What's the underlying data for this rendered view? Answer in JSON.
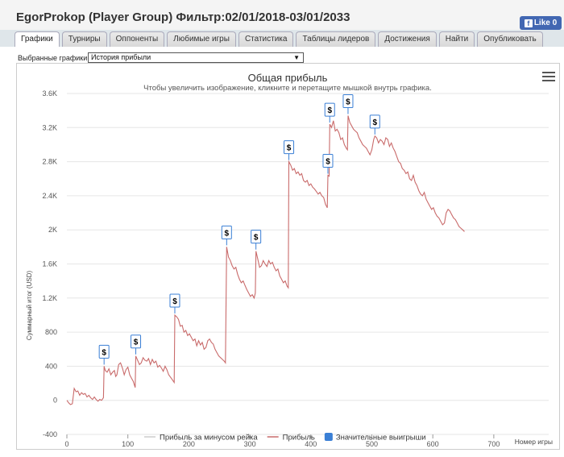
{
  "header": {
    "title": "EgorProkop (Player Group) Фильтр:02/01/2018-03/01/2033",
    "fb_like_label": "Like 0"
  },
  "tabs": [
    {
      "label": "Графики",
      "active": true
    },
    {
      "label": "Турниры"
    },
    {
      "label": "Оппоненты"
    },
    {
      "label": "Любимые игры"
    },
    {
      "label": "Статистика"
    },
    {
      "label": "Таблицы лидеров"
    },
    {
      "label": "Достижения"
    },
    {
      "label": "Найти"
    },
    {
      "label": "Опубликовать"
    }
  ],
  "selector": {
    "label": "Выбранные графики:",
    "value": "История прибыли"
  },
  "chart_data": {
    "type": "line",
    "title": "Общая прибыль",
    "subtitle": "Чтобы увеличить изображение, кликните и перетащите мышкой внутрь графика.",
    "xlabel": "Номер игры",
    "ylabel": "Суммарный итог (USD)",
    "xlim": [
      0,
      790
    ],
    "ylim": [
      -400,
      3600
    ],
    "xticks": [
      0,
      100,
      200,
      300,
      400,
      500,
      600,
      700
    ],
    "yticks": [
      -400,
      0,
      400,
      800,
      1200,
      1600,
      2000,
      2400,
      2800,
      3200,
      3600
    ],
    "ytick_labels": [
      "-400",
      "0",
      "400",
      "800",
      "1.2K",
      "1.6K",
      "2K",
      "2.4K",
      "2.8K",
      "3.2K",
      "3.6K"
    ],
    "grid": true,
    "legend_position": "bottom",
    "legend": [
      {
        "name": "Прибыль за минусом рейка",
        "color": "#cccccc",
        "type": "line"
      },
      {
        "name": "Прибыль",
        "color": "#c96b6b",
        "type": "line"
      },
      {
        "name": "Значительные выигрыши",
        "color": "#3a7fd5",
        "type": "box"
      }
    ],
    "series": [
      {
        "name": "Прибыль",
        "color": "#c96b6b",
        "points": [
          [
            0,
            0
          ],
          [
            3,
            -30
          ],
          [
            6,
            -50
          ],
          [
            9,
            -40
          ],
          [
            12,
            140
          ],
          [
            15,
            100
          ],
          [
            18,
            110
          ],
          [
            21,
            60
          ],
          [
            24,
            90
          ],
          [
            27,
            70
          ],
          [
            30,
            80
          ],
          [
            33,
            40
          ],
          [
            36,
            60
          ],
          [
            39,
            30
          ],
          [
            42,
            10
          ],
          [
            45,
            40
          ],
          [
            48,
            10
          ],
          [
            51,
            -10
          ],
          [
            54,
            10
          ],
          [
            57,
            0
          ],
          [
            60,
            30
          ],
          [
            61,
            400
          ],
          [
            63,
            350
          ],
          [
            66,
            330
          ],
          [
            69,
            370
          ],
          [
            72,
            300
          ],
          [
            75,
            330
          ],
          [
            78,
            350
          ],
          [
            80,
            280
          ],
          [
            82,
            300
          ],
          [
            85,
            420
          ],
          [
            88,
            440
          ],
          [
            91,
            380
          ],
          [
            94,
            300
          ],
          [
            97,
            360
          ],
          [
            100,
            390
          ],
          [
            103,
            300
          ],
          [
            106,
            260
          ],
          [
            109,
            220
          ],
          [
            112,
            150
          ],
          [
            113,
            520
          ],
          [
            116,
            470
          ],
          [
            119,
            420
          ],
          [
            122,
            440
          ],
          [
            125,
            500
          ],
          [
            128,
            470
          ],
          [
            131,
            460
          ],
          [
            134,
            490
          ],
          [
            137,
            420
          ],
          [
            140,
            480
          ],
          [
            143,
            440
          ],
          [
            146,
            460
          ],
          [
            149,
            390
          ],
          [
            152,
            410
          ],
          [
            155,
            380
          ],
          [
            158,
            340
          ],
          [
            161,
            400
          ],
          [
            164,
            360
          ],
          [
            167,
            300
          ],
          [
            170,
            270
          ],
          [
            173,
            240
          ],
          [
            176,
            210
          ],
          [
            177,
            1000
          ],
          [
            180,
            980
          ],
          [
            183,
            950
          ],
          [
            186,
            870
          ],
          [
            189,
            880
          ],
          [
            192,
            800
          ],
          [
            195,
            820
          ],
          [
            198,
            760
          ],
          [
            201,
            780
          ],
          [
            204,
            740
          ],
          [
            207,
            700
          ],
          [
            210,
            720
          ],
          [
            213,
            640
          ],
          [
            216,
            700
          ],
          [
            219,
            650
          ],
          [
            222,
            680
          ],
          [
            225,
            600
          ],
          [
            228,
            620
          ],
          [
            231,
            700
          ],
          [
            234,
            720
          ],
          [
            237,
            680
          ],
          [
            240,
            660
          ],
          [
            243,
            600
          ],
          [
            246,
            560
          ],
          [
            249,
            520
          ],
          [
            252,
            500
          ],
          [
            255,
            480
          ],
          [
            258,
            460
          ],
          [
            260,
            440
          ],
          [
            262,
            1800
          ],
          [
            265,
            1680
          ],
          [
            268,
            1640
          ],
          [
            271,
            1580
          ],
          [
            274,
            1540
          ],
          [
            277,
            1560
          ],
          [
            280,
            1480
          ],
          [
            283,
            1420
          ],
          [
            286,
            1380
          ],
          [
            289,
            1400
          ],
          [
            292,
            1350
          ],
          [
            295,
            1300
          ],
          [
            298,
            1260
          ],
          [
            301,
            1220
          ],
          [
            304,
            1240
          ],
          [
            307,
            1200
          ],
          [
            309,
            1260
          ],
          [
            310,
            1750
          ],
          [
            313,
            1660
          ],
          [
            316,
            1560
          ],
          [
            319,
            1580
          ],
          [
            322,
            1640
          ],
          [
            325,
            1600
          ],
          [
            328,
            1570
          ],
          [
            331,
            1640
          ],
          [
            334,
            1600
          ],
          [
            337,
            1620
          ],
          [
            340,
            1560
          ],
          [
            343,
            1520
          ],
          [
            346,
            1540
          ],
          [
            349,
            1460
          ],
          [
            352,
            1420
          ],
          [
            355,
            1380
          ],
          [
            358,
            1400
          ],
          [
            361,
            1340
          ],
          [
            363,
            1320
          ],
          [
            364,
            2800
          ],
          [
            367,
            2760
          ],
          [
            370,
            2700
          ],
          [
            373,
            2720
          ],
          [
            376,
            2660
          ],
          [
            379,
            2680
          ],
          [
            382,
            2640
          ],
          [
            385,
            2660
          ],
          [
            388,
            2580
          ],
          [
            391,
            2560
          ],
          [
            394,
            2580
          ],
          [
            397,
            2520
          ],
          [
            400,
            2540
          ],
          [
            403,
            2500
          ],
          [
            406,
            2480
          ],
          [
            409,
            2450
          ],
          [
            412,
            2420
          ],
          [
            415,
            2440
          ],
          [
            418,
            2400
          ],
          [
            421,
            2380
          ],
          [
            424,
            2300
          ],
          [
            427,
            2260
          ],
          [
            428,
            2640
          ],
          [
            430,
            2630
          ],
          [
            431,
            3240
          ],
          [
            434,
            3200
          ],
          [
            437,
            3280
          ],
          [
            440,
            3160
          ],
          [
            443,
            3180
          ],
          [
            446,
            3140
          ],
          [
            449,
            3060
          ],
          [
            452,
            3080
          ],
          [
            455,
            3000
          ],
          [
            458,
            2960
          ],
          [
            460,
            2940
          ],
          [
            461,
            3340
          ],
          [
            464,
            3260
          ],
          [
            467,
            3220
          ],
          [
            470,
            3180
          ],
          [
            473,
            3160
          ],
          [
            476,
            3140
          ],
          [
            479,
            3080
          ],
          [
            482,
            3040
          ],
          [
            485,
            3000
          ],
          [
            488,
            2980
          ],
          [
            491,
            2960
          ],
          [
            494,
            2920
          ],
          [
            497,
            2880
          ],
          [
            500,
            2940
          ],
          [
            503,
            3060
          ],
          [
            505,
            3100
          ],
          [
            508,
            3080
          ],
          [
            511,
            3020
          ],
          [
            514,
            3060
          ],
          [
            517,
            3040
          ],
          [
            520,
            3000
          ],
          [
            523,
            3080
          ],
          [
            526,
            3060
          ],
          [
            529,
            2980
          ],
          [
            532,
            3020
          ],
          [
            535,
            2960
          ],
          [
            538,
            2920
          ],
          [
            541,
            2860
          ],
          [
            544,
            2800
          ],
          [
            547,
            2780
          ],
          [
            550,
            2720
          ],
          [
            553,
            2700
          ],
          [
            556,
            2660
          ],
          [
            559,
            2680
          ],
          [
            562,
            2600
          ],
          [
            565,
            2580
          ],
          [
            568,
            2640
          ],
          [
            571,
            2560
          ],
          [
            574,
            2520
          ],
          [
            577,
            2460
          ],
          [
            580,
            2420
          ],
          [
            583,
            2400
          ],
          [
            586,
            2440
          ],
          [
            589,
            2360
          ],
          [
            592,
            2320
          ],
          [
            595,
            2280
          ],
          [
            598,
            2240
          ],
          [
            601,
            2260
          ],
          [
            604,
            2200
          ],
          [
            607,
            2160
          ],
          [
            610,
            2140
          ],
          [
            613,
            2100
          ],
          [
            616,
            2060
          ],
          [
            619,
            2080
          ],
          [
            622,
            2200
          ],
          [
            625,
            2240
          ],
          [
            628,
            2220
          ],
          [
            631,
            2180
          ],
          [
            634,
            2140
          ],
          [
            637,
            2120
          ],
          [
            640,
            2080
          ],
          [
            643,
            2040
          ],
          [
            646,
            2020
          ],
          [
            649,
            2000
          ],
          [
            652,
            1980
          ]
        ]
      }
    ],
    "big_wins": [
      {
        "x": 61,
        "y": 400,
        "label": "$"
      },
      {
        "x": 113,
        "y": 520,
        "label": "$"
      },
      {
        "x": 177,
        "y": 1000,
        "label": "$"
      },
      {
        "x": 262,
        "y": 1800,
        "label": "$"
      },
      {
        "x": 310,
        "y": 1750,
        "label": "$"
      },
      {
        "x": 364,
        "y": 2800,
        "label": "$"
      },
      {
        "x": 428,
        "y": 2640,
        "label": "$"
      },
      {
        "x": 431,
        "y": 3240,
        "label": "$"
      },
      {
        "x": 461,
        "y": 3340,
        "label": "$"
      },
      {
        "x": 505,
        "y": 3100,
        "label": "$"
      }
    ]
  }
}
